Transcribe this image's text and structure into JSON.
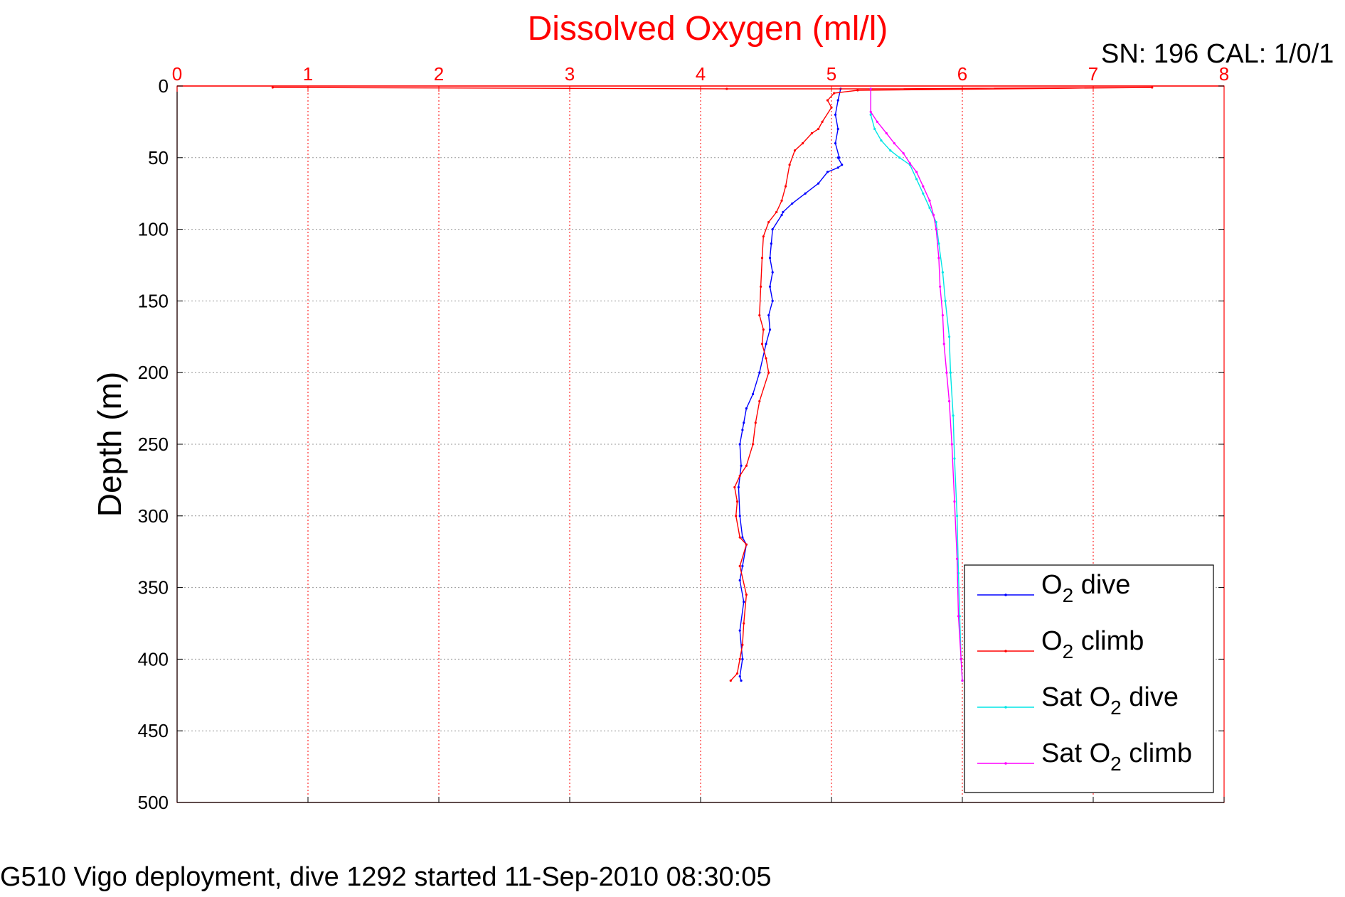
{
  "header": {
    "sn_label": "SN: 196  CAL: 1/0/1"
  },
  "caption": "G510 Vigo deployment, dive 1292 started 11-Sep-2010 08:30:05",
  "chart_data": {
    "type": "line",
    "title": "Dissolved Oxygen (ml/l)",
    "xlabel": "",
    "ylabel": "Depth (m)",
    "xlim": [
      0,
      8
    ],
    "ylim": [
      0,
      500
    ],
    "y_reversed": true,
    "x_axis_position": "top",
    "x_ticks": [
      "0",
      "1",
      "2",
      "3",
      "4",
      "5",
      "6",
      "7",
      "8"
    ],
    "y_ticks": [
      "0",
      "50",
      "100",
      "150",
      "200",
      "250",
      "300",
      "350",
      "400",
      "450",
      "500"
    ],
    "grid": true,
    "legend_position": "bottom-right",
    "colors": {
      "axis": "#ff0000",
      "grid": "#999999"
    },
    "series": [
      {
        "name": "O2 dive",
        "legend_main": "O",
        "legend_sub": "2",
        "legend_rest": " dive",
        "color": "#0000ff",
        "x": [
          5.07,
          5.05,
          5.03,
          5.05,
          5.03,
          5.06,
          5.05,
          5.08,
          5.05,
          4.97,
          4.9,
          4.8,
          4.7,
          4.63,
          4.62,
          4.55,
          4.54,
          4.53,
          4.55,
          4.53,
          4.55,
          4.52,
          4.53,
          4.5,
          4.45,
          4.4,
          4.35,
          4.33,
          4.32,
          4.3,
          4.31,
          4.29,
          4.3,
          4.32,
          4.35,
          4.32,
          4.3,
          4.33,
          4.3,
          4.32,
          4.3,
          4.31
        ],
        "y": [
          2,
          10,
          20,
          30,
          40,
          50,
          50,
          55,
          57,
          60,
          68,
          75,
          82,
          88,
          90,
          100,
          110,
          120,
          130,
          140,
          150,
          160,
          170,
          180,
          200,
          215,
          225,
          235,
          240,
          250,
          265,
          280,
          300,
          315,
          320,
          335,
          345,
          360,
          380,
          400,
          412,
          415
        ]
      },
      {
        "name": "O2 climb",
        "legend_main": "O",
        "legend_sub": "2",
        "legend_rest": " climb",
        "color": "#ff0000",
        "x": [
          0.73,
          4.2,
          5.3,
          7.45,
          5.2,
          5.02,
          4.97,
          5.0,
          4.93,
          4.9,
          4.85,
          4.78,
          4.72,
          4.68,
          4.65,
          4.62,
          4.58,
          4.52,
          4.48,
          4.47,
          4.46,
          4.45,
          4.48,
          4.47,
          4.5,
          4.52,
          4.45,
          4.42,
          4.4,
          4.35,
          4.3,
          4.26,
          4.28,
          4.27,
          4.3,
          4.35,
          4.3,
          4.35,
          4.33,
          4.32,
          4.3,
          4.28,
          4.23
        ],
        "y": [
          1,
          2,
          2,
          1,
          3,
          5,
          10,
          15,
          25,
          30,
          33,
          40,
          45,
          55,
          70,
          80,
          88,
          95,
          105,
          120,
          140,
          160,
          170,
          180,
          190,
          200,
          220,
          235,
          250,
          265,
          272,
          280,
          290,
          300,
          315,
          320,
          335,
          355,
          375,
          390,
          400,
          410,
          415
        ]
      },
      {
        "name": "Sat O2 dive",
        "legend_main": "Sat O",
        "legend_sub": "2",
        "legend_rest": " dive",
        "color": "#00e5e5",
        "x": [
          5.3,
          5.3,
          5.33,
          5.38,
          5.45,
          5.52,
          5.6,
          5.65,
          5.7,
          5.75,
          5.8,
          5.82,
          5.85,
          5.87,
          5.9,
          5.91,
          5.93,
          5.94,
          5.96,
          5.97,
          5.98,
          5.99,
          6.0
        ],
        "y": [
          2,
          20,
          30,
          38,
          45,
          50,
          55,
          65,
          75,
          85,
          95,
          110,
          130,
          150,
          175,
          200,
          230,
          260,
          300,
          340,
          370,
          400,
          415
        ]
      },
      {
        "name": "Sat O2 climb",
        "legend_main": "Sat O",
        "legend_sub": "2",
        "legend_rest": " climb",
        "color": "#ff00ff",
        "x": [
          5.3,
          5.3,
          5.35,
          5.42,
          5.48,
          5.55,
          5.6,
          5.65,
          5.7,
          5.75,
          5.78,
          5.8,
          5.82,
          5.83,
          5.85,
          5.86,
          5.88,
          5.9,
          5.92,
          5.94,
          5.96,
          5.97,
          5.99,
          6.0
        ],
        "y": [
          2,
          18,
          25,
          33,
          40,
          47,
          54,
          60,
          70,
          80,
          90,
          100,
          120,
          140,
          160,
          180,
          200,
          220,
          250,
          290,
          330,
          370,
          400,
          415
        ]
      }
    ]
  }
}
